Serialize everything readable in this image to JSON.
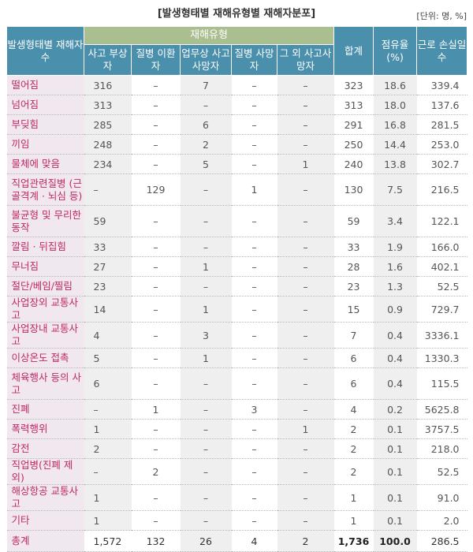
{
  "title": "[발생형태별 재해유형별 재해자분포]",
  "unit": "[단위: 명, %]",
  "header": {
    "row_head": "발생형태별 재해자수",
    "group": "재해유형",
    "types": [
      "사고 부상자",
      "질병 이환자",
      "업무상 사고사망자",
      "질병 사망자",
      "그 외 사고사망자"
    ],
    "total": "합계",
    "share": "점유율 (%)",
    "lost_days": "근로 손실일수"
  },
  "rows": [
    {
      "label": "떨어짐",
      "c1": "316",
      "c2": "–",
      "c3": "7",
      "c4": "–",
      "c5": "–",
      "total": "323",
      "share": "18.6",
      "days": "339.4"
    },
    {
      "label": "넘어짐",
      "c1": "313",
      "c2": "–",
      "c3": "–",
      "c4": "–",
      "c5": "–",
      "total": "313",
      "share": "18.0",
      "days": "137.6"
    },
    {
      "label": "부딪힘",
      "c1": "285",
      "c2": "–",
      "c3": "6",
      "c4": "–",
      "c5": "–",
      "total": "291",
      "share": "16.8",
      "days": "281.5"
    },
    {
      "label": "끼임",
      "c1": "248",
      "c2": "–",
      "c3": "2",
      "c4": "–",
      "c5": "–",
      "total": "250",
      "share": "14.4",
      "days": "253.0"
    },
    {
      "label": "물체에 맞음",
      "c1": "234",
      "c2": "–",
      "c3": "5",
      "c4": "–",
      "c5": "1",
      "total": "240",
      "share": "13.8",
      "days": "302.7"
    },
    {
      "label": "직업관련질병 (근골격계 · 뇌심 등)",
      "c1": "–",
      "c2": "129",
      "c3": "–",
      "c4": "1",
      "c5": "–",
      "total": "130",
      "share": "7.5",
      "days": "216.5"
    },
    {
      "label": "불균형 및 무리한 동작",
      "c1": "59",
      "c2": "–",
      "c3": "–",
      "c4": "–",
      "c5": "–",
      "total": "59",
      "share": "3.4",
      "days": "122.1"
    },
    {
      "label": "깔림 · 뒤집힘",
      "c1": "33",
      "c2": "–",
      "c3": "–",
      "c4": "–",
      "c5": "–",
      "total": "33",
      "share": "1.9",
      "days": "166.0"
    },
    {
      "label": "무너짐",
      "c1": "27",
      "c2": "–",
      "c3": "1",
      "c4": "–",
      "c5": "–",
      "total": "28",
      "share": "1.6",
      "days": "402.1"
    },
    {
      "label": "절단/베임/찔림",
      "c1": "23",
      "c2": "–",
      "c3": "–",
      "c4": "–",
      "c5": "–",
      "total": "23",
      "share": "1.3",
      "days": "52.5"
    },
    {
      "label": "사업장외 교통사고",
      "c1": "14",
      "c2": "–",
      "c3": "1",
      "c4": "–",
      "c5": "–",
      "total": "15",
      "share": "0.9",
      "days": "729.7"
    },
    {
      "label": "사업장내 교통사고",
      "c1": "4",
      "c2": "–",
      "c3": "3",
      "c4": "–",
      "c5": "–",
      "total": "7",
      "share": "0.4",
      "days": "3336.1"
    },
    {
      "label": "이상온도 접촉",
      "c1": "5",
      "c2": "–",
      "c3": "1",
      "c4": "–",
      "c5": "–",
      "total": "6",
      "share": "0.4",
      "days": "1330.3"
    },
    {
      "label": "체육행사 등의 사고",
      "c1": "6",
      "c2": "–",
      "c3": "–",
      "c4": "–",
      "c5": "–",
      "total": "6",
      "share": "0.4",
      "days": "115.5"
    },
    {
      "label": "진폐",
      "c1": "–",
      "c2": "1",
      "c3": "–",
      "c4": "3",
      "c5": "–",
      "total": "4",
      "share": "0.2",
      "days": "5625.8"
    },
    {
      "label": "폭력행위",
      "c1": "1",
      "c2": "–",
      "c3": "–",
      "c4": "–",
      "c5": "1",
      "total": "2",
      "share": "0.1",
      "days": "3757.5"
    },
    {
      "label": "감전",
      "c1": "2",
      "c2": "–",
      "c3": "–",
      "c4": "–",
      "c5": "–",
      "total": "2",
      "share": "0.1",
      "days": "218.0"
    },
    {
      "label": "직업병(진폐 제외)",
      "c1": "–",
      "c2": "2",
      "c3": "–",
      "c4": "–",
      "c5": "–",
      "total": "2",
      "share": "0.1",
      "days": "52.5"
    },
    {
      "label": "해상항공 교통사고",
      "c1": "1",
      "c2": "–",
      "c3": "–",
      "c4": "–",
      "c5": "–",
      "total": "1",
      "share": "0.1",
      "days": "91.0"
    },
    {
      "label": "기타",
      "c1": "1",
      "c2": "–",
      "c3": "–",
      "c4": "–",
      "c5": "–",
      "total": "1",
      "share": "0.1",
      "days": "2.0"
    }
  ],
  "sum_row": {
    "label": "총계",
    "c1": "1,572",
    "c2": "132",
    "c3": "26",
    "c4": "4",
    "c5": "2",
    "total": "1,736",
    "share": "100.0",
    "days": "286.5"
  }
}
